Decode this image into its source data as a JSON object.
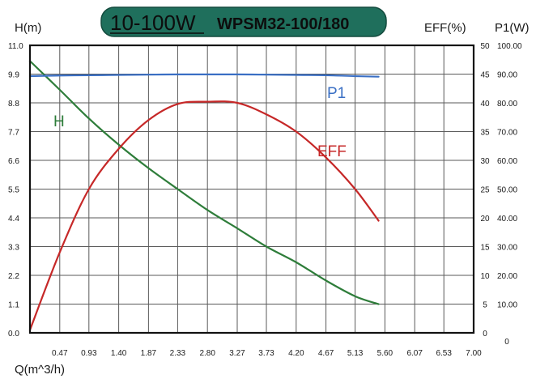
{
  "title": {
    "main": "10-100W",
    "model": "WPSM32-100/180",
    "badge_color": "#1f6f5c",
    "text_color": "#0d0d0d"
  },
  "chart_data": {
    "type": "line",
    "xlabel": "Q(m^3/h)",
    "y_left_label": "H(m)",
    "y_right1_label": "EFF(%)",
    "y_right2_label": "P1(W)",
    "xlim": [
      0,
      7.0
    ],
    "ylim_left": [
      0,
      11.0
    ],
    "ylim_right1": [
      0,
      50
    ],
    "ylim_right2": [
      0,
      100
    ],
    "x_ticks": [
      "0.47",
      "0.93",
      "1.40",
      "1.87",
      "2.33",
      "2.80",
      "3.27",
      "3.73",
      "4.20",
      "4.67",
      "5.13",
      "5.60",
      "6.07",
      "6.53",
      "7.00"
    ],
    "y_left_ticks": [
      "0.0",
      "1.1",
      "2.2",
      "3.3",
      "4.4",
      "5.5",
      "6.6",
      "7.7",
      "8.8",
      "9.9",
      "11.0"
    ],
    "y_right1_ticks": [
      "0",
      "5",
      "10",
      "15",
      "20",
      "25",
      "30",
      "35",
      "40",
      "45",
      "50"
    ],
    "y_right2_ticks": [
      "10.00",
      "20.00",
      "30.00",
      "40.00",
      "50.00",
      "60.00",
      "70.00",
      "80.00",
      "90.00",
      "100.00"
    ],
    "grid": true,
    "series": [
      {
        "name": "H",
        "axis": "left",
        "color": "#2e7d3a",
        "x": [
          0.0,
          0.47,
          0.93,
          1.4,
          1.87,
          2.33,
          2.8,
          3.27,
          3.73,
          4.2,
          4.67,
          5.13,
          5.5
        ],
        "y": [
          10.4,
          9.3,
          8.2,
          7.2,
          6.3,
          5.5,
          4.7,
          4.0,
          3.3,
          2.7,
          2.0,
          1.4,
          1.1
        ]
      },
      {
        "name": "EFF",
        "axis": "right1",
        "color": "#c62828",
        "x": [
          0.0,
          0.47,
          0.93,
          1.4,
          1.87,
          2.33,
          2.8,
          3.27,
          3.73,
          4.2,
          4.67,
          5.13,
          5.5
        ],
        "y": [
          0.5,
          14.0,
          25.0,
          32.0,
          37.0,
          39.8,
          40.2,
          40.0,
          38.0,
          35.0,
          30.5,
          25.0,
          19.5
        ]
      },
      {
        "name": "P1",
        "axis": "right2",
        "color": "#3a6fc4",
        "x": [
          0.0,
          0.47,
          0.93,
          1.4,
          1.87,
          2.33,
          2.8,
          3.27,
          3.73,
          4.2,
          4.67,
          5.13,
          5.5
        ],
        "y": [
          89.3,
          89.5,
          89.6,
          89.7,
          89.8,
          89.9,
          89.9,
          89.9,
          89.8,
          89.7,
          89.6,
          89.3,
          89.1
        ]
      }
    ],
    "annotations": [
      {
        "text": "H",
        "series": "H"
      },
      {
        "text": "EFF",
        "series": "EFF"
      },
      {
        "text": "P1",
        "series": "P1"
      }
    ]
  }
}
